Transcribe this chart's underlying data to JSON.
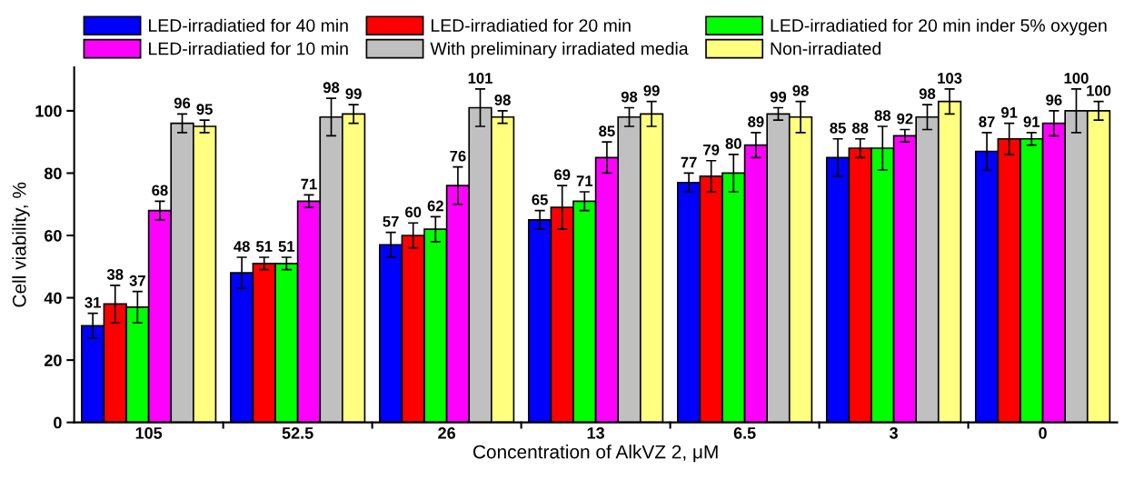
{
  "chart_data": {
    "type": "bar",
    "xlabel": "Concentration of AlkVZ 2, μM",
    "ylabel": "Cell viability, %",
    "categories": [
      "105",
      "52.5",
      "26",
      "13",
      "6.5",
      "3",
      "0"
    ],
    "ylim": [
      0,
      114
    ],
    "yticks": [
      0,
      20,
      40,
      60,
      80,
      100
    ],
    "grid": false,
    "legend": "top",
    "data_labels": true,
    "series": [
      {
        "name": "LED-irradiatied for 40 min",
        "color": "#0000ff",
        "values": [
          31,
          48,
          57,
          65,
          77,
          85,
          87
        ],
        "errors": [
          4,
          5,
          4,
          3,
          3,
          6,
          6
        ]
      },
      {
        "name": "LED-irradiatied for 20 min",
        "color": "#ff0000",
        "values": [
          38,
          51,
          60,
          69,
          79,
          88,
          91
        ],
        "errors": [
          6,
          2,
          4,
          7,
          5,
          3,
          5
        ]
      },
      {
        "name": "LED-irradiatied for 20 min inder 5% oxygen",
        "color": "#00ff00",
        "values": [
          37,
          51,
          62,
          71,
          80,
          88,
          91
        ],
        "errors": [
          5,
          2,
          4,
          3,
          6,
          7,
          2
        ]
      },
      {
        "name": "LED-irradiatied for 10 min",
        "color": "#ff00ff",
        "values": [
          68,
          71,
          76,
          85,
          89,
          92,
          96
        ],
        "errors": [
          3,
          2,
          6,
          5,
          4,
          2,
          4
        ]
      },
      {
        "name": "With preliminary irradiated media",
        "color": "#c0c0c0",
        "values": [
          96,
          98,
          101,
          98,
          99,
          98,
          100
        ],
        "errors": [
          3,
          6,
          6,
          3,
          2,
          4,
          7
        ]
      },
      {
        "name": "Non-irradiated",
        "color": "#ffff80",
        "values": [
          95,
          99,
          98,
          99,
          98,
          103,
          100
        ],
        "errors": [
          2,
          3,
          2,
          4,
          5,
          4,
          3
        ]
      }
    ]
  }
}
